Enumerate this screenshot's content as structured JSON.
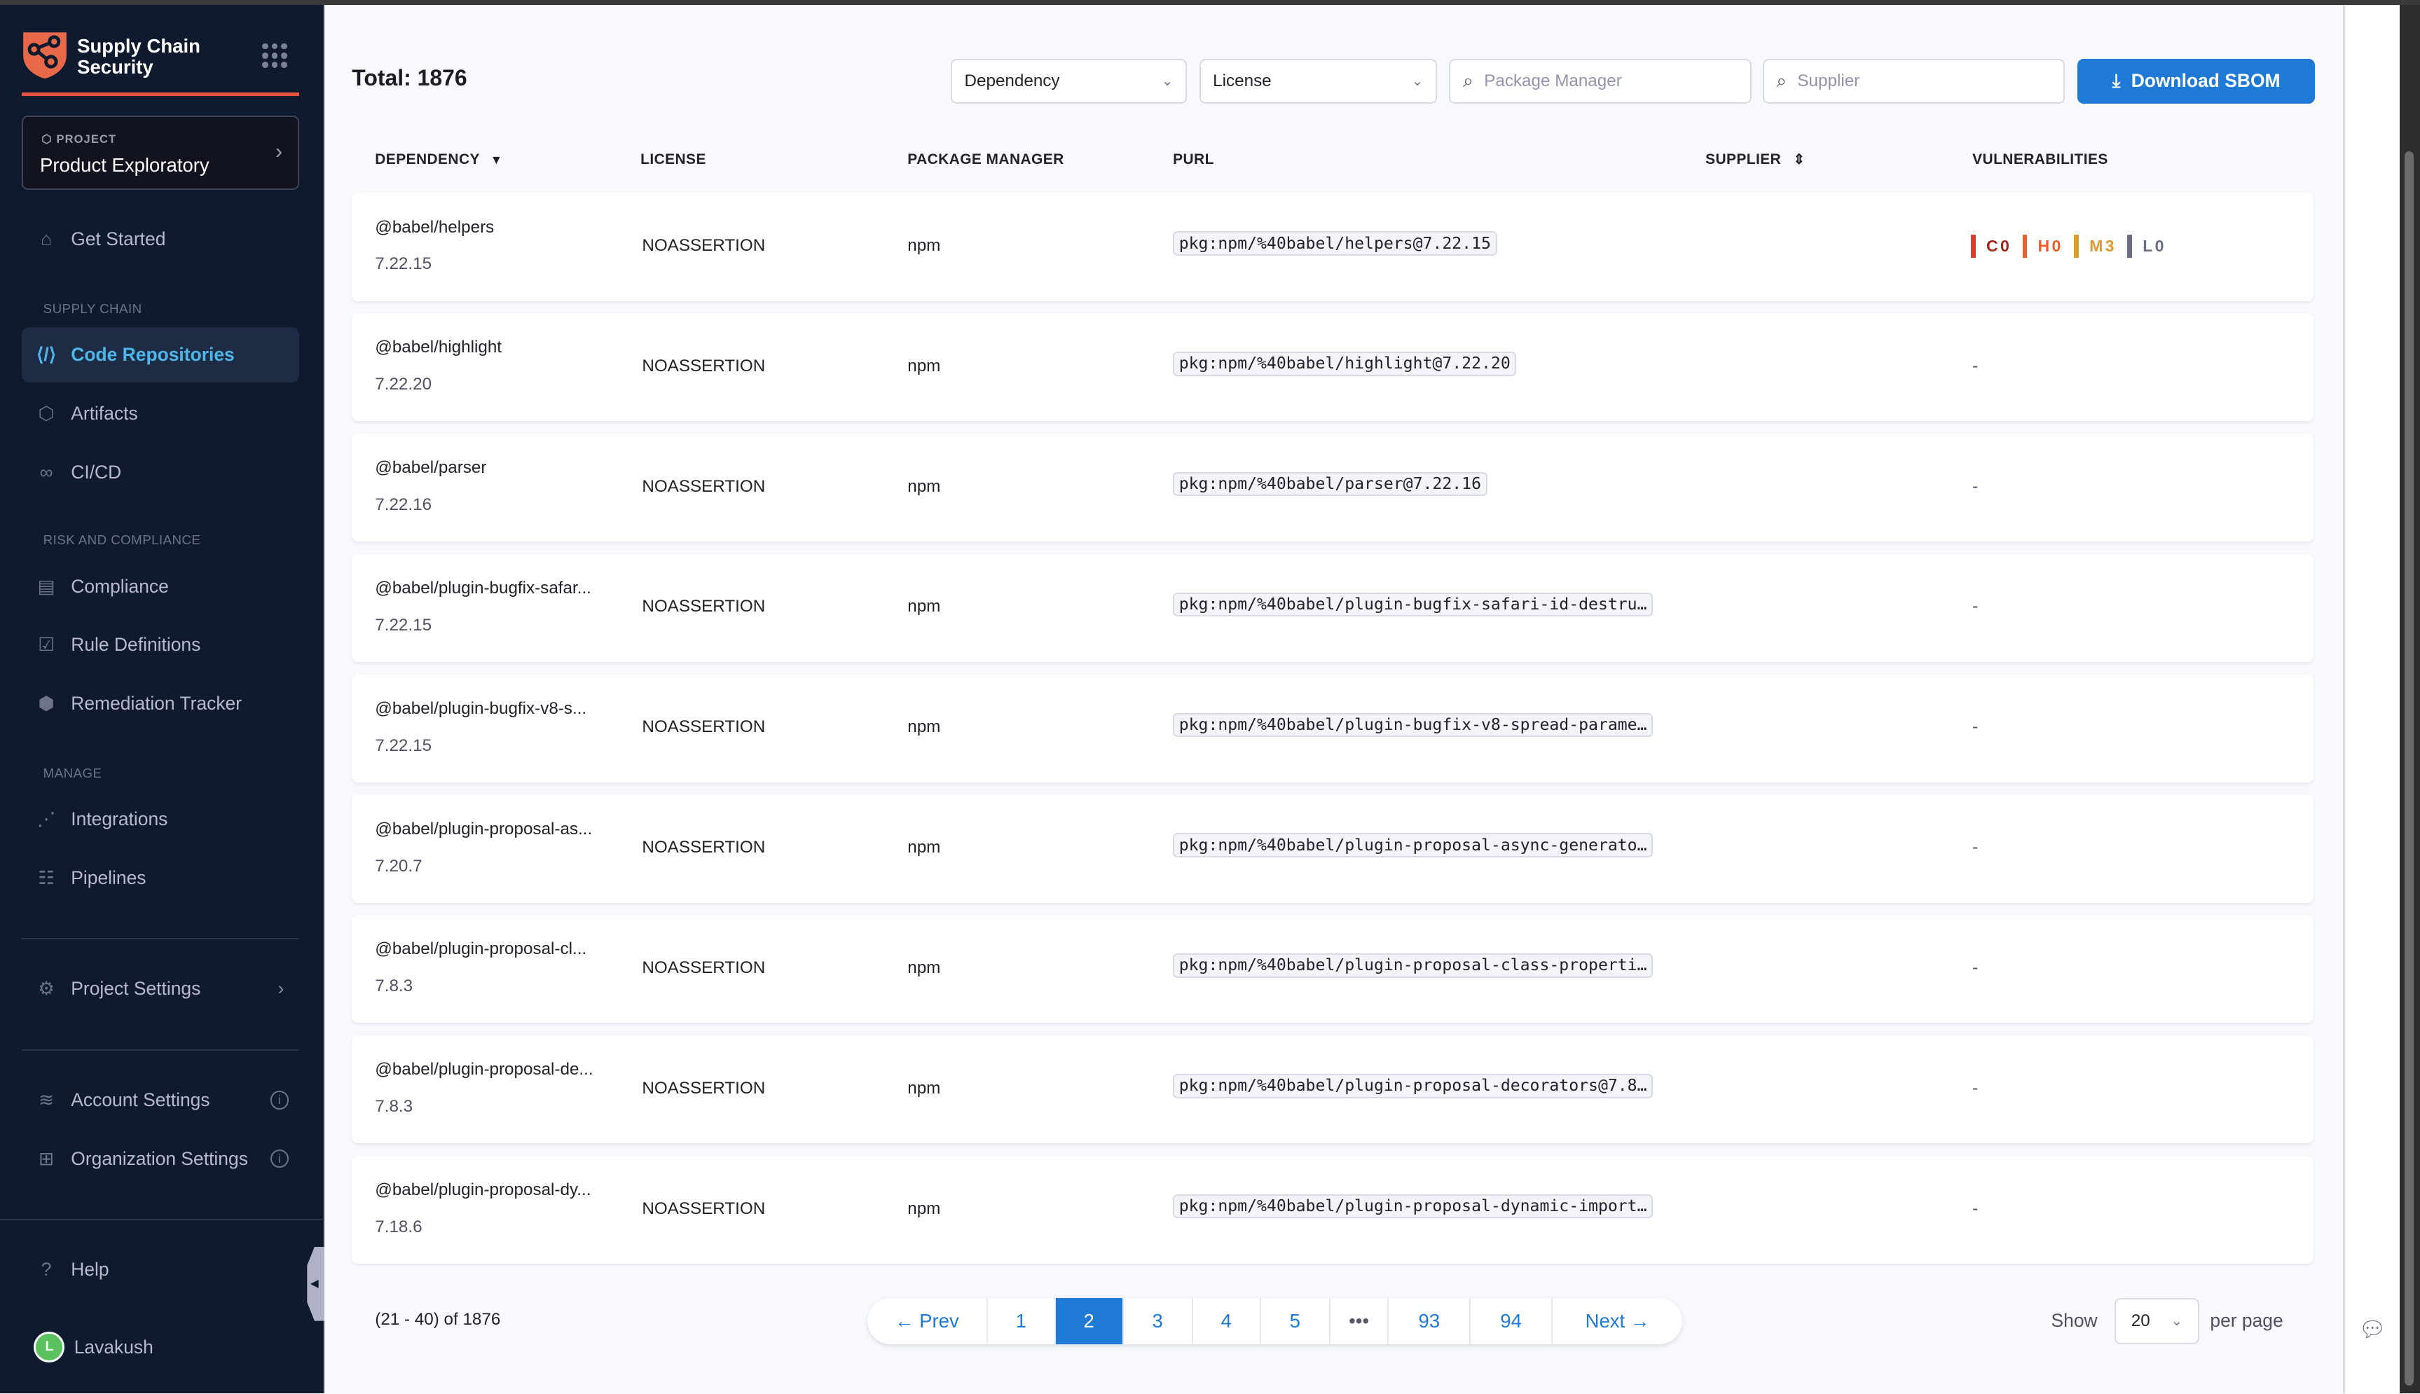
{
  "sidebar": {
    "brand": [
      "Supply Chain",
      "Security"
    ],
    "project_label": "PROJECT",
    "project_name": "Product Exploratory",
    "get_started": "Get Started",
    "section_supply_chain": "SUPPLY CHAIN",
    "code_repositories": "Code Repositories",
    "artifacts": "Artifacts",
    "cicd": "CI/CD",
    "section_risk": "RISK AND COMPLIANCE",
    "compliance": "Compliance",
    "rule_definitions": "Rule Definitions",
    "remediation_tracker": "Remediation Tracker",
    "section_manage": "MANAGE",
    "integrations": "Integrations",
    "pipelines": "Pipelines",
    "project_settings": "Project Settings",
    "account_settings": "Account Settings",
    "organization_settings": "Organization Settings",
    "help": "Help",
    "user_initial": "L",
    "user_name": "Lavakush",
    "accent": "#4fb6ea",
    "brand_color": "#e5533d"
  },
  "toolbar": {
    "total": "Total: 1876",
    "dependency_filter": "Dependency",
    "license_filter": "License",
    "package_manager_placeholder": "Package Manager",
    "supplier_placeholder": "Supplier",
    "download": "Download SBOM"
  },
  "table": {
    "headers": [
      "DEPENDENCY",
      "LICENSE",
      "PACKAGE MANAGER",
      "PURL",
      "SUPPLIER",
      "VULNERABILITIES"
    ],
    "rows": [
      {
        "name": "@babel/helpers",
        "version": "7.22.15",
        "license": "NOASSERTION",
        "pm": "npm",
        "purl": "pkg:npm/%40babel/helpers@7.22.15",
        "vuln": "C0|H0|M3|L0"
      },
      {
        "name": "@babel/highlight",
        "version": "7.22.20",
        "license": "NOASSERTION",
        "pm": "npm",
        "purl": "pkg:npm/%40babel/highlight@7.22.20",
        "vuln": "-"
      },
      {
        "name": "@babel/parser",
        "version": "7.22.16",
        "license": "NOASSERTION",
        "pm": "npm",
        "purl": "pkg:npm/%40babel/parser@7.22.16",
        "vuln": "-"
      },
      {
        "name": "@babel/plugin-bugfix-safar...",
        "version": "7.22.15",
        "license": "NOASSERTION",
        "pm": "npm",
        "purl": "pkg:npm/%40babel/plugin-bugfix-safari-id-destru…",
        "vuln": "-"
      },
      {
        "name": "@babel/plugin-bugfix-v8-s...",
        "version": "7.22.15",
        "license": "NOASSERTION",
        "pm": "npm",
        "purl": "pkg:npm/%40babel/plugin-bugfix-v8-spread-parame…",
        "vuln": "-"
      },
      {
        "name": "@babel/plugin-proposal-as...",
        "version": "7.20.7",
        "license": "NOASSERTION",
        "pm": "npm",
        "purl": "pkg:npm/%40babel/plugin-proposal-async-generato…",
        "vuln": "-"
      },
      {
        "name": "@babel/plugin-proposal-cl...",
        "version": "7.8.3",
        "license": "NOASSERTION",
        "pm": "npm",
        "purl": "pkg:npm/%40babel/plugin-proposal-class-properti…",
        "vuln": "-"
      },
      {
        "name": "@babel/plugin-proposal-de...",
        "version": "7.8.3",
        "license": "NOASSERTION",
        "pm": "npm",
        "purl": "pkg:npm/%40babel/plugin-proposal-decorators@7.8…",
        "vuln": "-"
      },
      {
        "name": "@babel/plugin-proposal-dy...",
        "version": "7.18.6",
        "license": "NOASSERTION",
        "pm": "npm",
        "purl": "pkg:npm/%40babel/plugin-proposal-dynamic-import…",
        "vuln": "-"
      }
    ],
    "severity": [
      {
        "label": "C",
        "count": "0",
        "color": "#a3281c",
        "bar": "#d7402b"
      },
      {
        "label": "H",
        "count": "0",
        "color": "#ef5f2c",
        "bar": "#ef5f2c"
      },
      {
        "label": "M",
        "count": "3",
        "color": "#dc9b32",
        "bar": "#dc9b32"
      },
      {
        "label": "L",
        "count": "0",
        "color": "#6b6d85",
        "bar": "#6b6d85"
      }
    ]
  },
  "pagination": {
    "range": "(21 - 40) of 1876",
    "prev": "← Prev",
    "pages": [
      "1",
      "2",
      "3",
      "4",
      "5",
      "•••",
      "93",
      "94"
    ],
    "current": "2",
    "next": "Next →",
    "show": "Show",
    "per_page_value": "20",
    "per_page": "per page"
  }
}
